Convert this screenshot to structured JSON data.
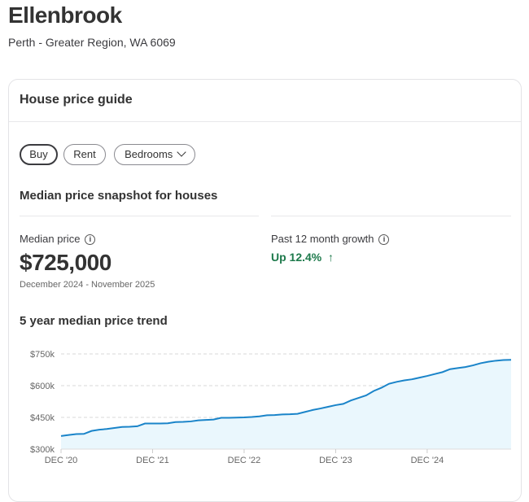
{
  "header": {
    "title": "Ellenbrook",
    "subtitle": "Perth - Greater Region, WA 6069"
  },
  "card": {
    "title": "House price guide",
    "filters": [
      {
        "label": "Buy",
        "selected": true
      },
      {
        "label": "Rent",
        "selected": false
      },
      {
        "label": "Bedrooms",
        "selected": false
      }
    ],
    "snapshot_title": "Median price snapshot for houses",
    "median": {
      "label": "Median price",
      "value": "$725,000",
      "period": "December 2024 - November 2025"
    },
    "growth": {
      "label": "Past 12 month growth",
      "value": "Up 12.4%",
      "arrow": "↑",
      "color": "#1e7a4c"
    },
    "trend_title": "5 year median price trend"
  },
  "chart_data": {
    "type": "area",
    "x_start": "2020-12",
    "x_end": "2025-11",
    "x_interval": "month",
    "xticks": [
      "DEC '20",
      "DEC '21",
      "DEC '22",
      "DEC '23",
      "DEC '24"
    ],
    "yticks": [
      "$750k",
      "$600k",
      "$450k",
      "$300k"
    ],
    "ylim": [
      300,
      750
    ],
    "yunit": "k AUD",
    "grid": "horizontal dashed",
    "line_color": "#1a84c9",
    "fill_color": "#eaf7fd",
    "values": [
      362,
      367,
      371,
      372,
      386,
      392,
      395,
      400,
      405,
      406,
      408,
      421,
      421,
      421,
      422,
      428,
      429,
      431,
      436,
      438,
      440,
      448,
      448,
      449,
      450,
      452,
      455,
      460,
      461,
      464,
      465,
      467,
      476,
      485,
      492,
      500,
      508,
      514,
      530,
      542,
      554,
      575,
      590,
      609,
      618,
      625,
      630,
      638,
      646,
      655,
      664,
      678,
      683,
      688,
      696,
      706,
      713,
      718,
      721,
      722
    ]
  }
}
